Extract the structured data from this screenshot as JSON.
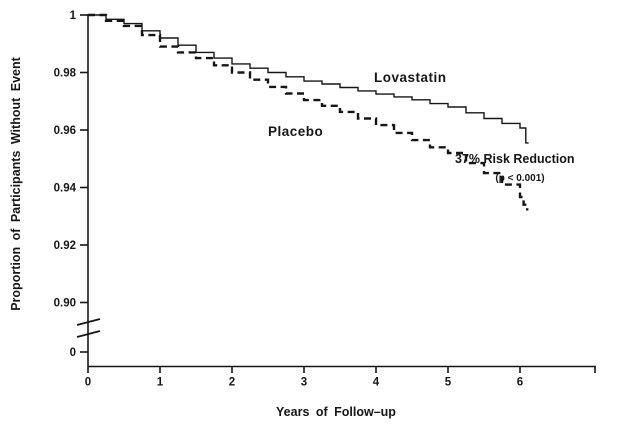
{
  "figure": {
    "series_labels": {
      "lovastatin": "Lovastatin",
      "placebo": "Placebo"
    },
    "annotation": {
      "line1": "37% Risk Reduction",
      "line2": "(p < 0.001)"
    },
    "colors": {
      "ink": "#161616",
      "background": "#ffffff"
    }
  },
  "chart_data": {
    "type": "line",
    "subtype": "kaplan-meier-step-curves",
    "title": "",
    "xlabel": "Years of Follow–up",
    "ylabel": "Proportion of Participants Without Event",
    "x_ticks": [
      0,
      1,
      2,
      3,
      4,
      5,
      6
    ],
    "y_ticks": [
      "1",
      "0.98",
      "0.96",
      "0.94",
      "0.92",
      "0.90",
      "0"
    ],
    "y_axis_break": true,
    "grid": false,
    "legend_position": "inline-labels",
    "xlim": [
      0,
      7.05
    ],
    "ylim_main": [
      0.885,
      1.0
    ],
    "series": [
      {
        "name": "Lovastatin",
        "line_style": "solid",
        "x": [
          0,
          0.25,
          0.5,
          0.75,
          1,
          1.25,
          1.5,
          1.75,
          2,
          2.25,
          2.5,
          2.75,
          3,
          3.25,
          3.5,
          3.75,
          4,
          4.25,
          4.5,
          4.75,
          5,
          5.25,
          5.5,
          5.75,
          6,
          6.08,
          6.12
        ],
        "y": [
          1.0,
          0.9985,
          0.997,
          0.9945,
          0.992,
          0.9895,
          0.987,
          0.985,
          0.983,
          0.9815,
          0.98,
          0.9785,
          0.977,
          0.976,
          0.9748,
          0.9736,
          0.9725,
          0.9715,
          0.9705,
          0.9692,
          0.968,
          0.966,
          0.964,
          0.9623,
          0.9607,
          0.9555,
          0.9555
        ]
      },
      {
        "name": "Placebo",
        "line_style": "dashed",
        "x": [
          0,
          0.25,
          0.5,
          0.75,
          1,
          1.25,
          1.5,
          1.75,
          2,
          2.25,
          2.5,
          2.75,
          3,
          3.25,
          3.5,
          3.75,
          4,
          4.25,
          4.5,
          4.75,
          5,
          5.25,
          5.5,
          5.75,
          6,
          6.05,
          6.1
        ],
        "y": [
          1.0,
          0.998,
          0.9962,
          0.993,
          0.989,
          0.987,
          0.985,
          0.9825,
          0.98,
          0.9775,
          0.975,
          0.9727,
          0.9704,
          0.9684,
          0.9663,
          0.964,
          0.9617,
          0.959,
          0.9565,
          0.954,
          0.952,
          0.9485,
          0.945,
          0.941,
          0.9367,
          0.934,
          0.932
        ]
      }
    ],
    "annotations": [
      {
        "text": "37% Risk Reduction",
        "x": 5.2,
        "y": 0.95
      },
      {
        "text": "(p < 0.001)",
        "x": 5.75,
        "y": 0.9435
      }
    ]
  }
}
